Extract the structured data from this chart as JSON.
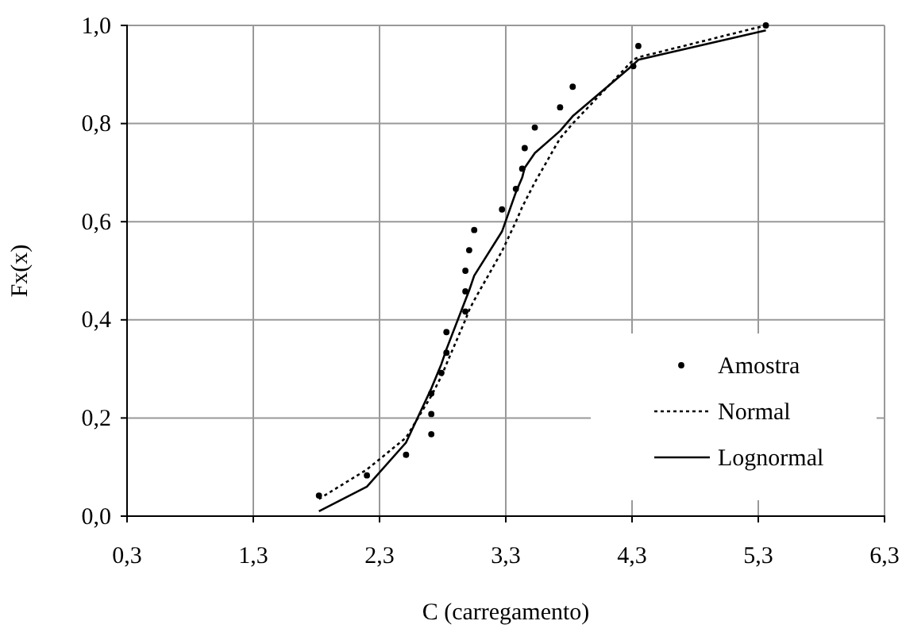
{
  "chart_data": {
    "type": "line",
    "xlabel": "C (carregamento)",
    "ylabel": "Fx(x)",
    "xlim": [
      0.3,
      6.3
    ],
    "ylim": [
      0,
      1
    ],
    "xticks": [
      {
        "value": 0.3,
        "label": "0,3"
      },
      {
        "value": 1.3,
        "label": "1,3"
      },
      {
        "value": 2.3,
        "label": "2,3"
      },
      {
        "value": 3.3,
        "label": "3,3"
      },
      {
        "value": 4.3,
        "label": "4,3"
      },
      {
        "value": 5.3,
        "label": "5,3"
      },
      {
        "value": 6.3,
        "label": "6,3"
      }
    ],
    "yticks": [
      {
        "value": 0,
        "label": "0,0"
      },
      {
        "value": 0.2,
        "label": "0,2"
      },
      {
        "value": 0.4,
        "label": "0,4"
      },
      {
        "value": 0.6,
        "label": "0,6"
      },
      {
        "value": 0.8,
        "label": "0,8"
      },
      {
        "value": 1,
        "label": "1,0"
      }
    ],
    "grid": true,
    "legend": "bottom right",
    "series": [
      {
        "name": "Amostra",
        "type": "scatter",
        "marker": "circle",
        "color": "#000000",
        "x": [
          1.82,
          2.2,
          2.51,
          2.71,
          2.71,
          2.71,
          2.79,
          2.83,
          2.83,
          2.98,
          2.98,
          2.98,
          3.01,
          3.05,
          3.27,
          3.38,
          3.43,
          3.45,
          3.53,
          3.73,
          3.83,
          4.31,
          4.35,
          5.36
        ],
        "values": [
          0.042,
          0.083,
          0.125,
          0.167,
          0.208,
          0.25,
          0.292,
          0.333,
          0.375,
          0.417,
          0.458,
          0.5,
          0.542,
          0.583,
          0.625,
          0.667,
          0.708,
          0.75,
          0.792,
          0.833,
          0.875,
          0.917,
          0.958,
          1.0
        ]
      },
      {
        "name": "Normal",
        "line_style": "dotted",
        "color": "#000000",
        "x": [
          1.82,
          2.2,
          2.51,
          2.71,
          2.79,
          2.83,
          2.98,
          3.01,
          3.05,
          3.27,
          3.38,
          3.43,
          3.45,
          3.53,
          3.73,
          3.83,
          4.31,
          4.35,
          5.36
        ],
        "values": [
          0.035,
          0.095,
          0.16,
          0.245,
          0.285,
          0.31,
          0.4,
          0.42,
          0.44,
          0.54,
          0.6,
          0.63,
          0.64,
          0.68,
          0.77,
          0.8,
          0.93,
          0.935,
          1.0
        ]
      },
      {
        "name": "Lognormal",
        "line_style": "solid",
        "color": "#000000",
        "x": [
          1.82,
          2.2,
          2.51,
          2.71,
          2.79,
          2.83,
          2.98,
          3.01,
          3.05,
          3.27,
          3.38,
          3.43,
          3.45,
          3.53,
          3.73,
          3.83,
          4.31,
          4.35,
          5.36
        ],
        "values": [
          0.01,
          0.06,
          0.15,
          0.26,
          0.31,
          0.34,
          0.44,
          0.46,
          0.49,
          0.58,
          0.66,
          0.69,
          0.71,
          0.74,
          0.785,
          0.815,
          0.92,
          0.93,
          0.99
        ]
      }
    ]
  }
}
